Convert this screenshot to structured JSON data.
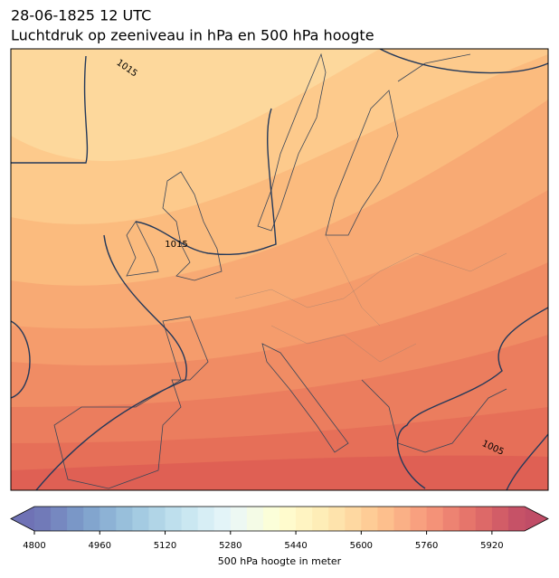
{
  "header": {
    "line1": "28-06-1825 12 UTC",
    "line2": "Luchtdruk op zeeniveau in hPa en 500 hPa hoogte"
  },
  "map": {
    "contour_labels": [
      "1015",
      "1015",
      "1005"
    ]
  },
  "colorbar": {
    "label": "500 hPa hoogte in meter",
    "vlim": [
      4800,
      6000
    ],
    "step": 40,
    "ticks": [
      4800,
      4960,
      5120,
      5280,
      5440,
      5600,
      5760,
      5920
    ],
    "colormap": [
      "#313695",
      "#4575b4",
      "#74add1",
      "#abd9e9",
      "#e0f3f8",
      "#ffffbf",
      "#fee090",
      "#fdae61",
      "#f46d43",
      "#d73027",
      "#a50026"
    ],
    "alpha": 0.7
  }
}
